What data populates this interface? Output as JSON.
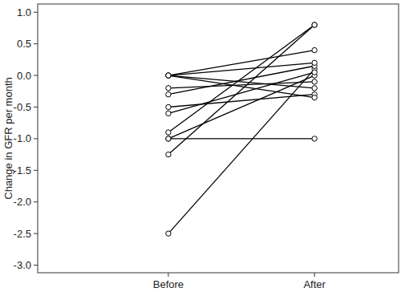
{
  "chart_data": {
    "type": "line",
    "y_label": "Change in GFR per month",
    "categories": [
      "Before",
      "After"
    ],
    "color": "#000000",
    "marker": "circle",
    "grid": false,
    "ylim": [
      -3.12,
      1.13
    ],
    "yticks": [
      {
        "value": -3.0,
        "label": "-3.0"
      },
      {
        "value": -2.5,
        "label": "-2.5"
      },
      {
        "value": -2.0,
        "label": "-2.0"
      },
      {
        "value": -1.5,
        "label": "-1.5"
      },
      {
        "value": -1.0,
        "label": "-1.0"
      },
      {
        "value": -0.5,
        "label": "-0.5"
      },
      {
        "value": 0.0,
        "label": "0.0"
      },
      {
        "value": 0.5,
        "label": "0.5"
      },
      {
        "value": 1.0,
        "label": "1.0"
      }
    ],
    "series": [
      {
        "values": [
          -2.5,
          0.1
        ]
      },
      {
        "values": [
          -1.25,
          0.8
        ]
      },
      {
        "values": [
          -0.9,
          0.8
        ]
      },
      {
        "values": [
          -1.0,
          -1.0
        ]
      },
      {
        "values": [
          -1.0,
          0.0
        ]
      },
      {
        "values": [
          -0.6,
          0.05
        ]
      },
      {
        "values": [
          -0.5,
          -0.3
        ]
      },
      {
        "values": [
          -0.3,
          0.15
        ]
      },
      {
        "values": [
          -0.2,
          -0.1
        ]
      },
      {
        "values": [
          0.0,
          0.4
        ]
      },
      {
        "values": [
          0.0,
          -0.2
        ]
      },
      {
        "values": [
          0.0,
          -0.35
        ]
      },
      {
        "values": [
          0.0,
          0.2
        ]
      }
    ]
  }
}
